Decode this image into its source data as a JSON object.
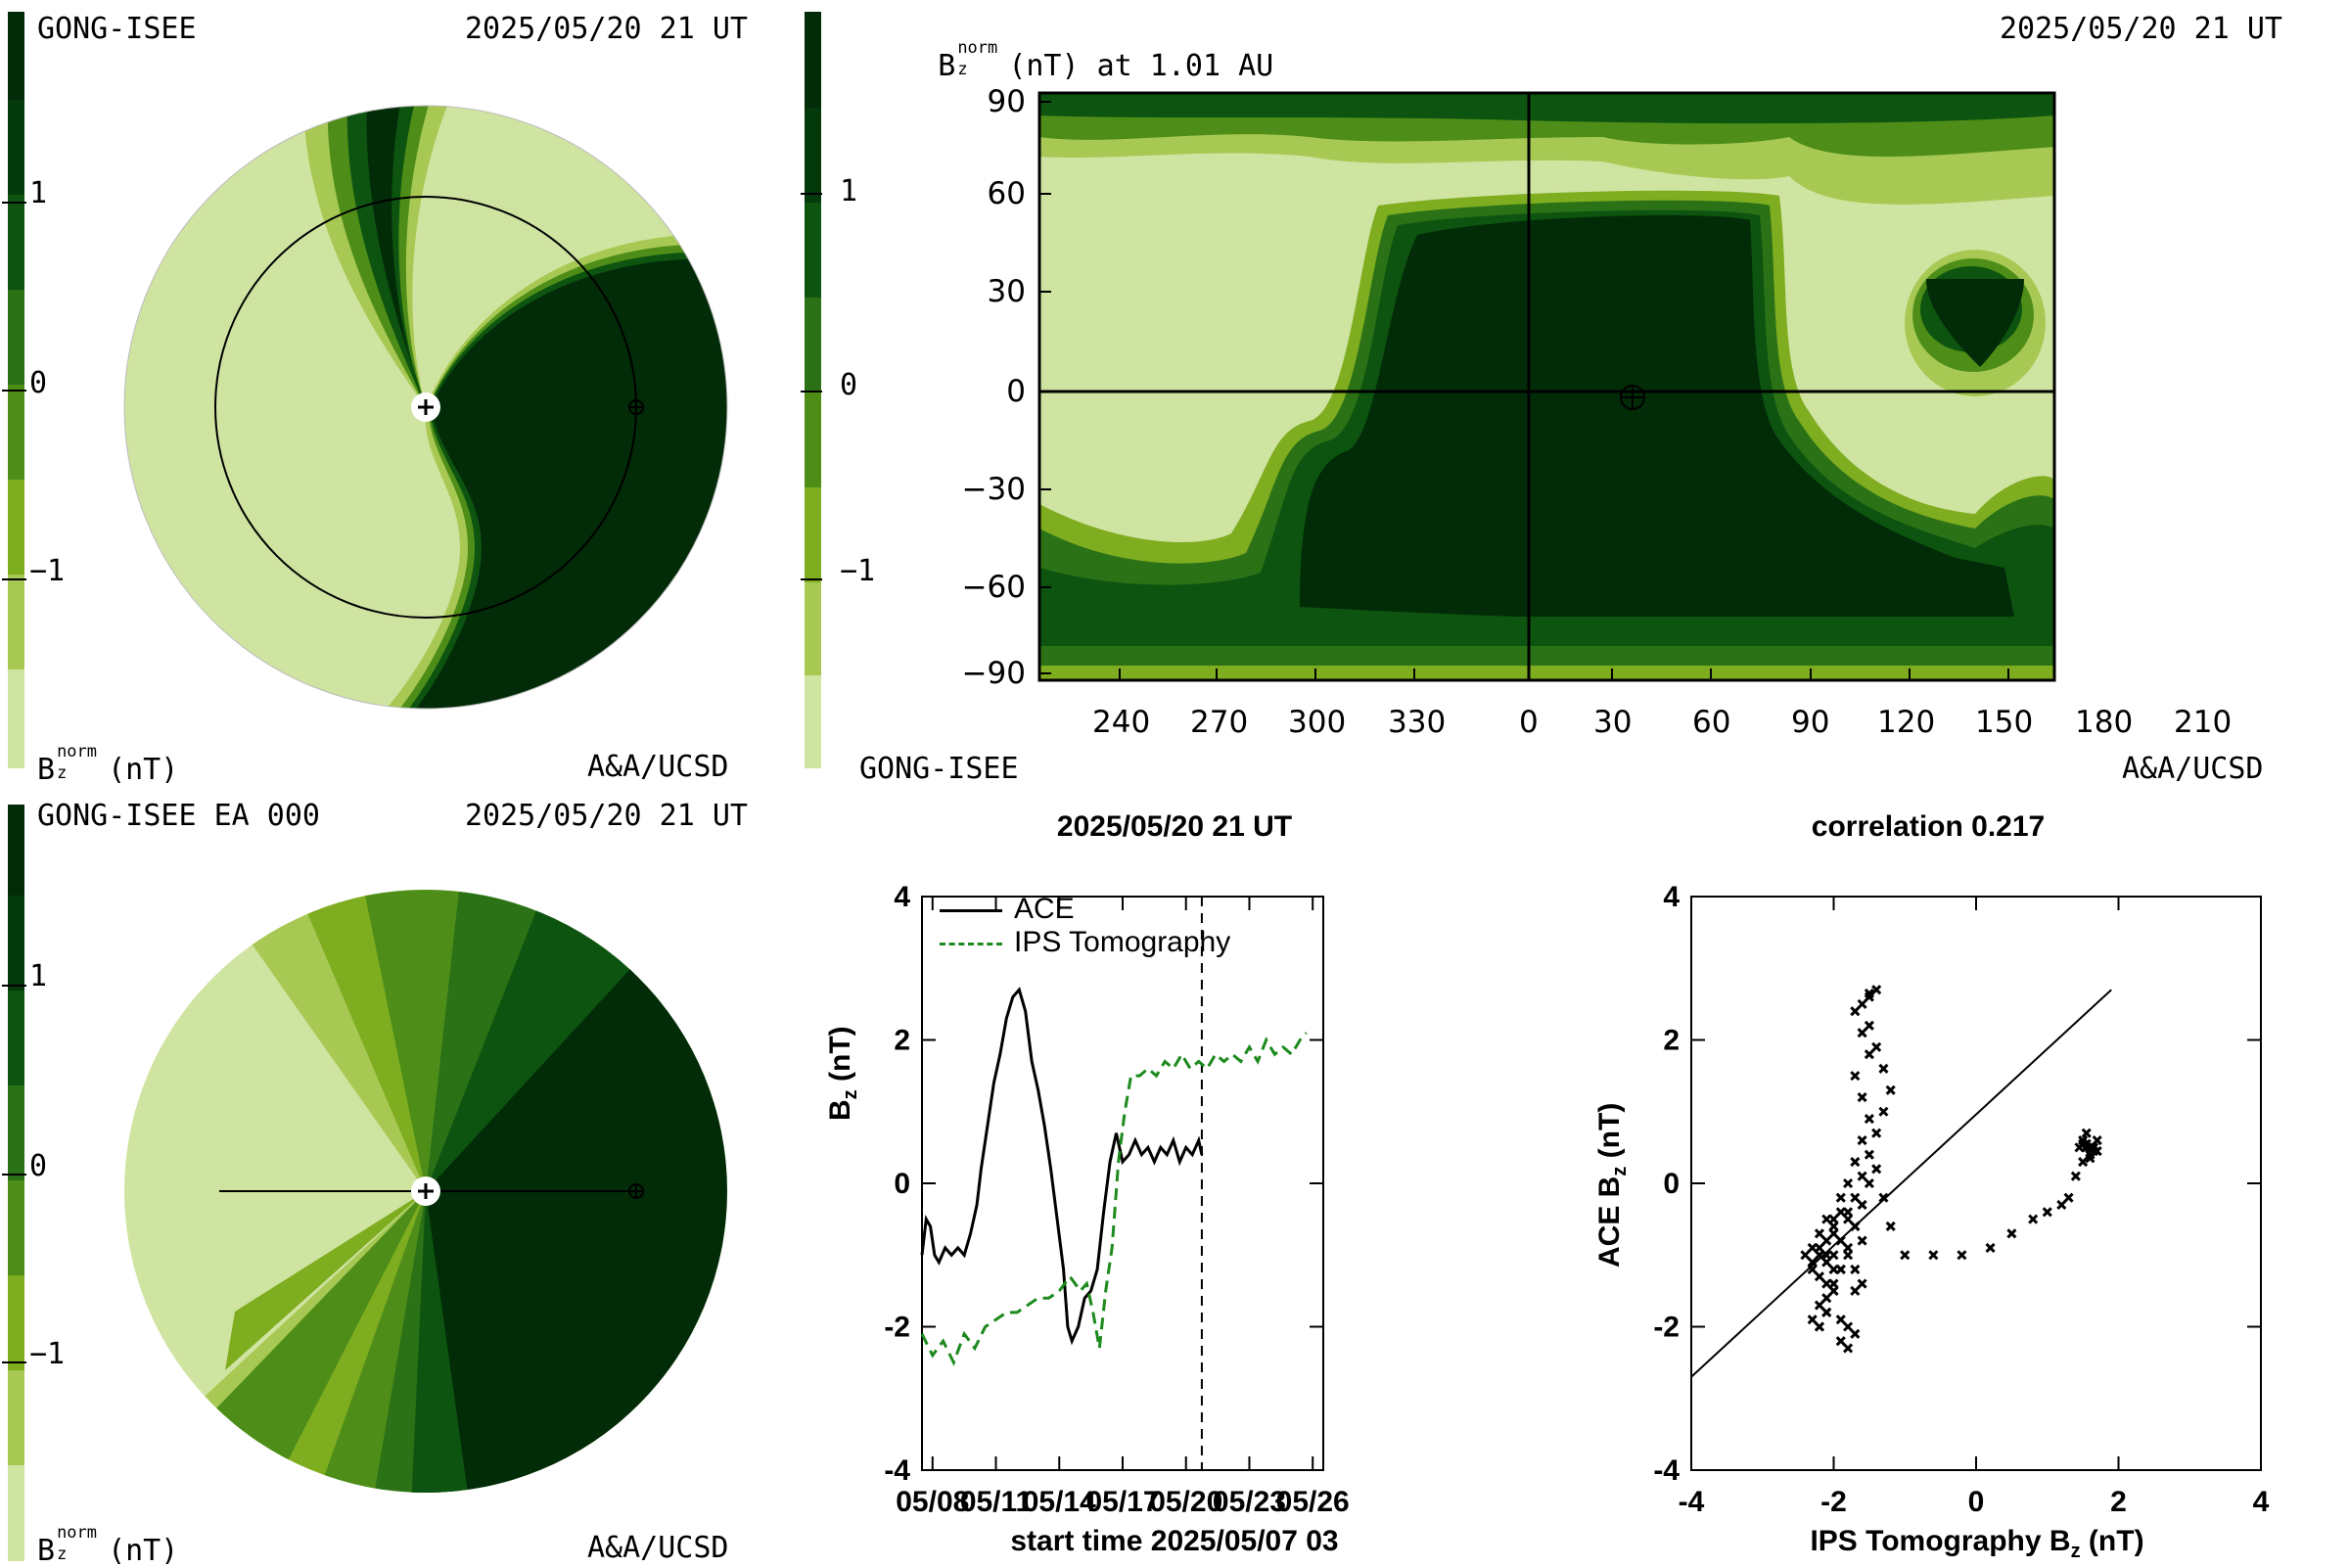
{
  "colors": {
    "levels": [
      "#d0e4a2",
      "#a7c954",
      "#7fad20",
      "#4e8e18",
      "#2b7216",
      "#0d5410",
      "#043a0b",
      "#022b07"
    ],
    "green_dashed": "#1d8a1d"
  },
  "panel_tl": {
    "source": "GONG-ISEE",
    "datetime": "2025/05/20 21 UT",
    "quantity": "B",
    "sub": "z",
    "sup": "norm",
    "unit": "(nT)",
    "credit": "A&A/UCSD",
    "colorbar_ticks": [
      "1",
      "0",
      "−1"
    ]
  },
  "panel_tr": {
    "title_quantity": "B",
    "title_sub": "z",
    "title_sup": "norm",
    "title_rest": "(nT) at 1.01 AU",
    "datetime": "2025/05/20 21 UT",
    "source": "GONG-ISEE",
    "credit": "A&A/UCSD",
    "colorbar_ticks": [
      "1",
      "0",
      "−1"
    ],
    "y_ticks": [
      "90",
      "60",
      "30",
      "0",
      "−30",
      "−60",
      "−90"
    ],
    "x_ticks": [
      "240",
      "270",
      "300",
      "330",
      "0",
      "30",
      "60",
      "90",
      "120",
      "150",
      "180",
      "210"
    ]
  },
  "panel_bl": {
    "source": "GONG-ISEE EA 000",
    "datetime": "2025/05/20 21 UT",
    "quantity": "B",
    "sub": "z",
    "sup": "norm",
    "unit": "(nT)",
    "credit": "A&A/UCSD",
    "colorbar_ticks": [
      "1",
      "0",
      "−1"
    ]
  },
  "chart_data": [
    {
      "type": "line",
      "title": "2025/05/20 21 UT",
      "xlabel": "start time 2025/05/07 03",
      "ylabel": "B",
      "ylabel_sub": "z",
      "ylabel_unit": "(nT)",
      "ylim": [
        -4,
        4
      ],
      "xlim_days": [
        0.5,
        19.5
      ],
      "x_ticks": [
        "05/08",
        "05/11",
        "05/14",
        "05/17",
        "05/20",
        "05/23",
        "05/26"
      ],
      "y_ticks": [
        "4",
        "2",
        "0",
        "-2",
        "-4"
      ],
      "vline_day": 13.75,
      "series": [
        {
          "name": "ACE",
          "style": "solid",
          "x": [
            0.5,
            0.7,
            0.9,
            1.1,
            1.3,
            1.6,
            1.9,
            2.2,
            2.5,
            2.8,
            3.1,
            3.3,
            3.6,
            3.9,
            4.2,
            4.5,
            4.8,
            5.1,
            5.4,
            5.7,
            6.0,
            6.3,
            6.6,
            6.9,
            7.2,
            7.4,
            7.6,
            7.9,
            8.2,
            8.5,
            8.8,
            9.1,
            9.4,
            9.7,
            10.0,
            10.3,
            10.6,
            10.9,
            11.2,
            11.5,
            11.8,
            12.1,
            12.4,
            12.7,
            13.0,
            13.3,
            13.6,
            13.75
          ],
          "y": [
            -1.0,
            -0.5,
            -0.6,
            -1.0,
            -1.1,
            -0.9,
            -1.0,
            -0.9,
            -1.0,
            -0.7,
            -0.3,
            0.2,
            0.8,
            1.4,
            1.8,
            2.3,
            2.6,
            2.7,
            2.4,
            1.7,
            1.3,
            0.8,
            0.2,
            -0.5,
            -1.2,
            -2.0,
            -2.2,
            -2.0,
            -1.6,
            -1.5,
            -1.2,
            -0.4,
            0.3,
            0.7,
            0.3,
            0.4,
            0.6,
            0.4,
            0.5,
            0.3,
            0.5,
            0.4,
            0.6,
            0.3,
            0.5,
            0.4,
            0.6,
            0.4
          ]
        },
        {
          "name": "IPS Tomography",
          "style": "dashed",
          "x": [
            0.5,
            1.0,
            1.5,
            2.0,
            2.5,
            3.0,
            3.5,
            4.0,
            4.5,
            5.0,
            5.5,
            6.0,
            6.5,
            7.0,
            7.5,
            8.0,
            8.3,
            8.6,
            8.9,
            9.2,
            9.5,
            9.8,
            10.1,
            10.4,
            10.8,
            11.2,
            11.6,
            12.0,
            12.4,
            12.8,
            13.2,
            13.6,
            14.0,
            14.4,
            14.8,
            15.2,
            15.6,
            16.0,
            16.4,
            16.8,
            17.2,
            17.6,
            18.0,
            18.4,
            18.7
          ],
          "y": [
            -2.1,
            -2.4,
            -2.2,
            -2.5,
            -2.1,
            -2.3,
            -2.0,
            -1.9,
            -1.8,
            -1.8,
            -1.7,
            -1.6,
            -1.6,
            -1.5,
            -1.3,
            -1.5,
            -1.4,
            -1.8,
            -2.3,
            -1.5,
            -0.9,
            0.3,
            1.0,
            1.5,
            1.5,
            1.6,
            1.5,
            1.7,
            1.6,
            1.8,
            1.6,
            1.7,
            1.6,
            1.8,
            1.7,
            1.8,
            1.7,
            1.9,
            1.7,
            2.0,
            1.8,
            1.9,
            1.8,
            2.0,
            2.1
          ]
        }
      ]
    },
    {
      "type": "scatter",
      "title": "correlation 0.217",
      "xlabel": "IPS Tomography B",
      "xlabel_sub": "z",
      "xlabel_unit": "(nT)",
      "ylabel": "ACE B",
      "ylabel_sub": "z",
      "ylabel_unit": "(nT)",
      "xlim": [
        -4,
        4
      ],
      "ylim": [
        -4,
        4
      ],
      "x_ticks": [
        "-4",
        "-2",
        "0",
        "2",
        "4"
      ],
      "y_ticks": [
        "4",
        "2",
        "0",
        "-2",
        "-4"
      ],
      "fit_line": {
        "x": [
          -4,
          1.9
        ],
        "y": [
          -2.7,
          2.7
        ]
      },
      "points": {
        "x": [
          -2.4,
          -2.3,
          -2.2,
          -2.1,
          -2.0,
          -2.2,
          -2.3,
          -2.1,
          -2.0,
          -2.1,
          -2.2,
          -2.0,
          -1.9,
          -2.0,
          -2.1,
          -2.2,
          -2.3,
          -2.2,
          -2.1,
          -2.0,
          -2.1,
          -2.2,
          -1.9,
          -1.8,
          -1.7,
          -1.8,
          -1.9,
          -1.7,
          -1.6,
          -1.7,
          -1.8,
          -1.6,
          -1.7,
          -1.8,
          -1.9,
          -1.8,
          -1.7,
          -1.6,
          -1.5,
          -1.6,
          -1.7,
          -1.5,
          -1.6,
          -1.7,
          -1.5,
          -1.4,
          -1.5,
          -1.6,
          -1.5,
          -1.4,
          -1.3,
          -1.2,
          -1.3,
          -1.4,
          -1.5,
          -1.6,
          -1.7,
          -1.8,
          -1.9,
          -2.0,
          -1.9,
          -2.0,
          -2.1,
          -2.2,
          -2.3,
          -2.2,
          -2.1,
          -2.0,
          -1.9,
          -1.8,
          -1.7,
          -1.6,
          -1.5,
          -1.4,
          -1.3,
          -1.2,
          -1.0,
          -0.6,
          -0.2,
          0.2,
          0.5,
          0.8,
          1.0,
          1.2,
          1.3,
          1.4,
          1.5,
          1.6,
          1.55,
          1.6,
          1.65,
          1.5,
          1.7,
          1.55,
          1.6,
          1.45,
          1.7,
          1.6,
          1.5,
          1.65,
          1.55
        ],
        "y": [
          -1.0,
          -1.1,
          -0.9,
          -1.0,
          -1.2,
          -1.0,
          -0.9,
          -0.8,
          -0.7,
          -1.1,
          -1.0,
          -0.5,
          -0.4,
          -0.6,
          -0.5,
          -0.7,
          -1.2,
          -1.3,
          -1.4,
          -1.5,
          -1.8,
          -2.0,
          -2.2,
          -2.3,
          -2.1,
          -2.0,
          -1.9,
          -1.5,
          -1.4,
          -1.2,
          -1.0,
          -0.8,
          -0.6,
          -0.4,
          -0.2,
          0.0,
          0.3,
          0.6,
          0.9,
          1.2,
          1.5,
          1.8,
          2.1,
          2.4,
          2.6,
          2.7,
          2.65,
          2.5,
          2.2,
          1.9,
          1.6,
          1.3,
          1.0,
          0.7,
          0.4,
          0.1,
          -0.2,
          -0.5,
          -0.8,
          -1.0,
          -1.2,
          -1.4,
          -1.6,
          -1.7,
          -1.9,
          -2.0,
          -1.8,
          -1.5,
          -1.2,
          -0.9,
          -0.6,
          -0.3,
          0.0,
          0.2,
          -0.2,
          -0.6,
          -1.0,
          -1.0,
          -1.0,
          -0.9,
          -0.7,
          -0.5,
          -0.4,
          -0.3,
          -0.2,
          0.1,
          0.3,
          0.5,
          0.7,
          0.4,
          0.5,
          0.6,
          0.45,
          0.55,
          0.35,
          0.5,
          0.6,
          0.4,
          0.55,
          0.45,
          0.5
        ]
      }
    }
  ]
}
